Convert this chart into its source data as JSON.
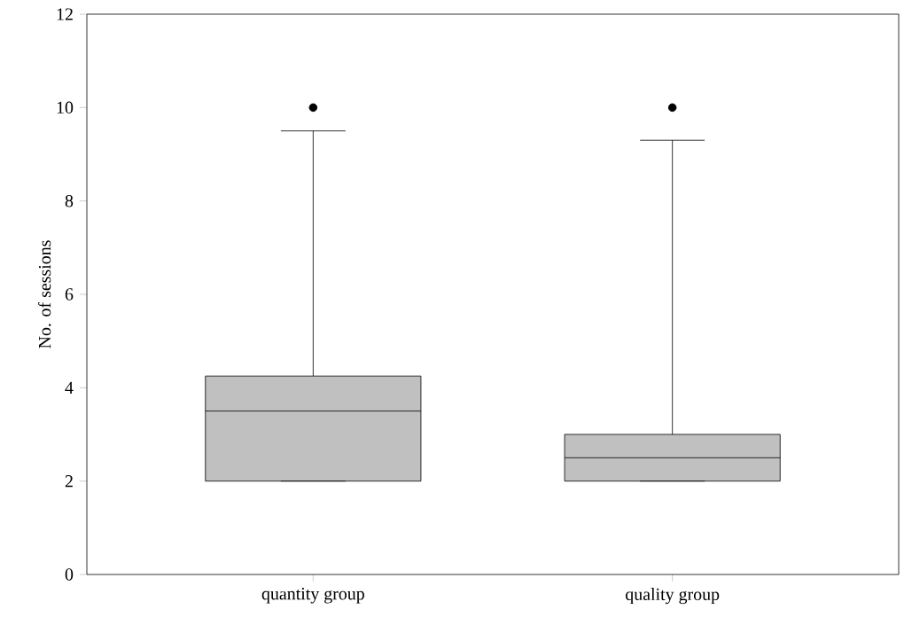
{
  "chart_data": {
    "type": "box",
    "ylabel": "No. of sessions",
    "categories": [
      "quantity group",
      "quality group"
    ],
    "boxes": [
      {
        "low": 2,
        "q1": 2,
        "median": 3.5,
        "q3": 4.25,
        "high": 9.5,
        "outliers": [
          10
        ]
      },
      {
        "low": 2,
        "q1": 2,
        "median": 2.5,
        "q3": 3,
        "high": 9.3,
        "outliers": [
          10
        ]
      }
    ],
    "color": "#c0c0c0",
    "ylim": [
      0,
      12
    ],
    "yticks": [
      0,
      2,
      4,
      6,
      8,
      10,
      12
    ],
    "grid": false
  }
}
